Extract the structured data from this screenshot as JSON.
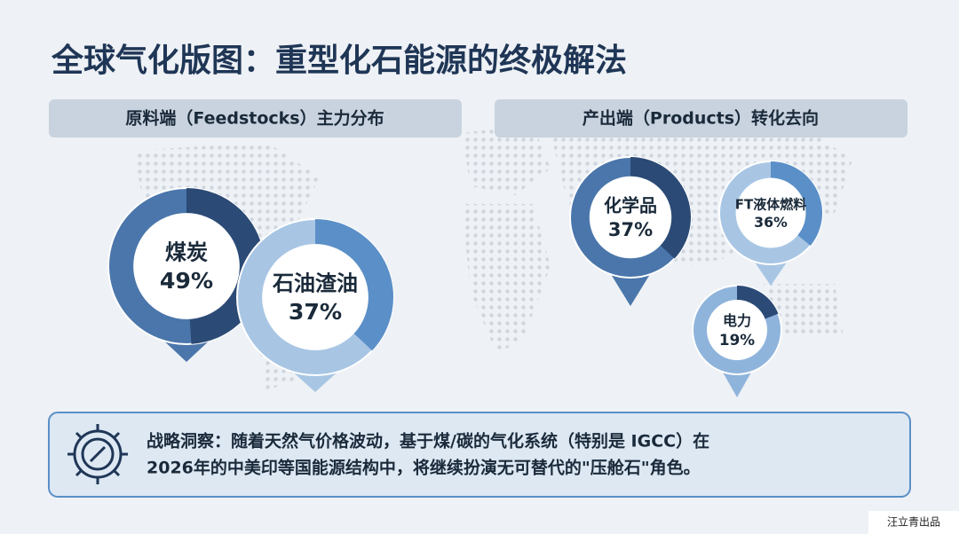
{
  "title": "全球气化版图：重型化石能源的终极解法",
  "chart_data": [
    {
      "type": "donut",
      "title": "原料端（Feedstocks）主力分布",
      "categories": [
        "煤炭",
        "石油渣油"
      ],
      "values": [
        49,
        37
      ],
      "value_labels": [
        "49%",
        "37%"
      ],
      "colors": [
        "#2b4a75",
        "#5b8fc7"
      ],
      "track_colors": [
        "#4a76ab",
        "#a8c6e4"
      ]
    },
    {
      "type": "donut",
      "title": "产出端（Products）转化去向",
      "categories": [
        "化学品",
        "FT液体燃料",
        "电力"
      ],
      "values": [
        37,
        36,
        19
      ],
      "value_labels": [
        "37%",
        "36%",
        "19%"
      ],
      "colors": [
        "#2b4a75",
        "#5b8fc7",
        "#2b4a75"
      ],
      "track_colors": [
        "#4a76ab",
        "#a8c6e4",
        "#8fb4dc"
      ]
    }
  ],
  "insight": {
    "lines": [
      "战略洞察：随着天然气价格波动，基于煤/碳的气化系统（特别是 IGCC）在",
      "2026年的中美印等国能源结构中，将继续扮演无可替代的\"压舱石\"角色。"
    ]
  },
  "footer": "汪立青出品"
}
